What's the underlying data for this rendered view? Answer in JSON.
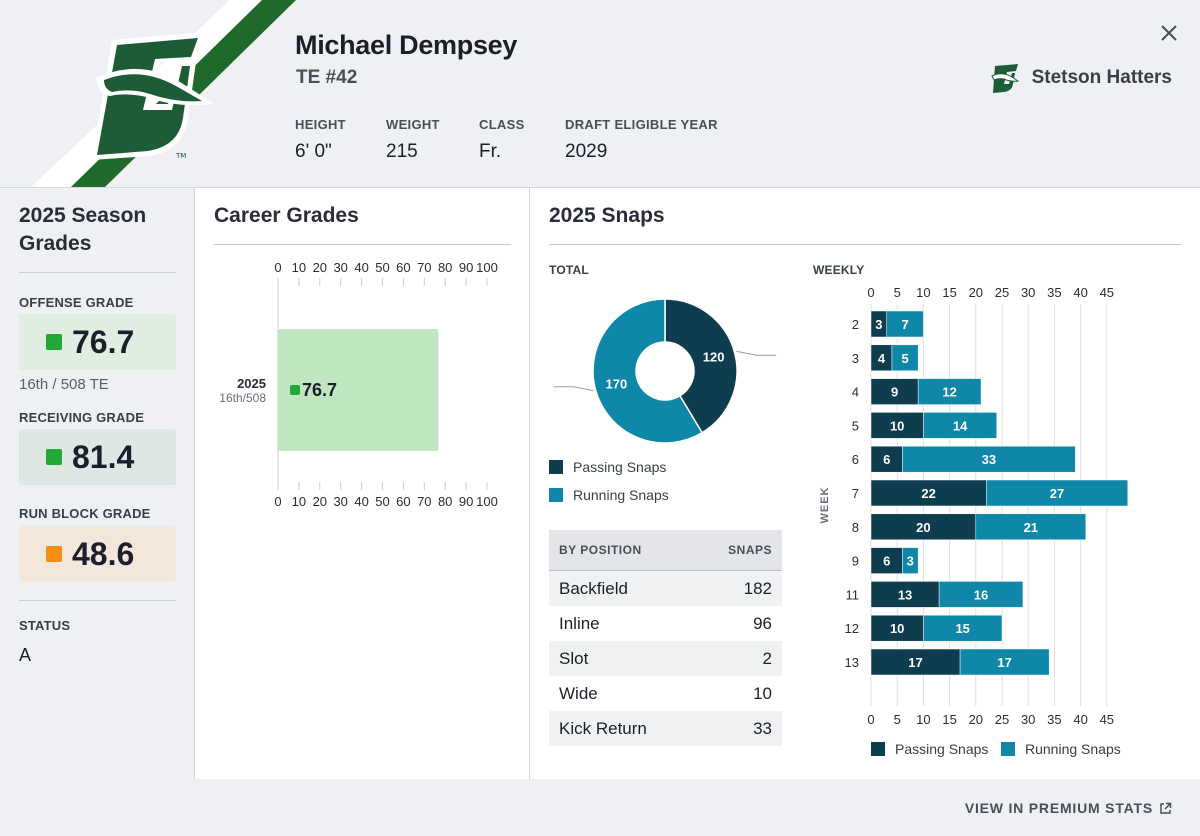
{
  "player": {
    "name": "Michael Dempsey",
    "position_number": "TE #42",
    "attributes": [
      {
        "label": "HEIGHT",
        "value": "6' 0\""
      },
      {
        "label": "WEIGHT",
        "value": "215"
      },
      {
        "label": "CLASS",
        "value": "Fr."
      },
      {
        "label": "DRAFT ELIGIBLE YEAR",
        "value": "2029"
      }
    ]
  },
  "team": {
    "name": "Stetson Hatters",
    "logo_tm": "TM"
  },
  "colors": {
    "passing": "#0d3d4f",
    "running": "#0e87a8",
    "grade_green": "#22a838",
    "grade_orange": "#f68f1a",
    "team_green": "#1e5c38"
  },
  "season_grades": {
    "title": "2025 Season Grades",
    "offense": {
      "label": "OFFENSE GRADE",
      "value": "76.7",
      "rank": "16th / 508 TE"
    },
    "receiving": {
      "label": "RECEIVING GRADE",
      "value": "81.4"
    },
    "run_block": {
      "label": "RUN BLOCK GRADE",
      "value": "48.6"
    },
    "status": {
      "label": "STATUS",
      "value": "A"
    }
  },
  "career": {
    "title": "Career Grades",
    "chart_data": {
      "type": "bar",
      "orientation": "horizontal",
      "categories": [
        "2025"
      ],
      "category_sublabels": [
        "16th/508"
      ],
      "values": [
        76.7
      ],
      "value_labels": [
        "76.7"
      ],
      "xlim": [
        0,
        100
      ],
      "xticks": [
        "0",
        "10",
        "20",
        "30",
        "40",
        "50",
        "60",
        "70",
        "80",
        "90",
        "100"
      ]
    }
  },
  "snaps": {
    "title": "2025 Snaps",
    "total_label": "TOTAL",
    "weekly_label": "WEEKLY",
    "week_axis_label": "WEEK",
    "legend": {
      "passing": "Passing Snaps",
      "running": "Running Snaps"
    },
    "total_chart": {
      "type": "pie",
      "series": [
        {
          "name": "Passing Snaps",
          "value": 120,
          "label": "120"
        },
        {
          "name": "Running Snaps",
          "value": 170,
          "label": "170"
        }
      ]
    },
    "by_position": {
      "header_position": "BY POSITION",
      "header_snaps": "SNAPS",
      "rows": [
        {
          "position": "Backfield",
          "snaps": "182"
        },
        {
          "position": "Inline",
          "snaps": "96"
        },
        {
          "position": "Slot",
          "snaps": "2"
        },
        {
          "position": "Wide",
          "snaps": "10"
        },
        {
          "position": "Kick Return",
          "snaps": "33"
        }
      ]
    },
    "weekly_chart": {
      "type": "bar",
      "orientation": "horizontal",
      "stacked": true,
      "categories": [
        "2",
        "3",
        "4",
        "5",
        "6",
        "7",
        "8",
        "9",
        "11",
        "12",
        "13"
      ],
      "series": [
        {
          "name": "Passing Snaps",
          "values": [
            3,
            4,
            9,
            10,
            6,
            22,
            20,
            6,
            13,
            10,
            17
          ]
        },
        {
          "name": "Running Snaps",
          "values": [
            7,
            5,
            12,
            14,
            33,
            27,
            21,
            3,
            16,
            15,
            17
          ]
        }
      ],
      "xlim": [
        0,
        50
      ],
      "xticks": [
        "0",
        "5",
        "10",
        "15",
        "20",
        "25",
        "30",
        "35",
        "40",
        "45"
      ],
      "ylabel": "WEEK"
    }
  },
  "footer": {
    "premium_link": "VIEW IN PREMIUM STATS"
  }
}
